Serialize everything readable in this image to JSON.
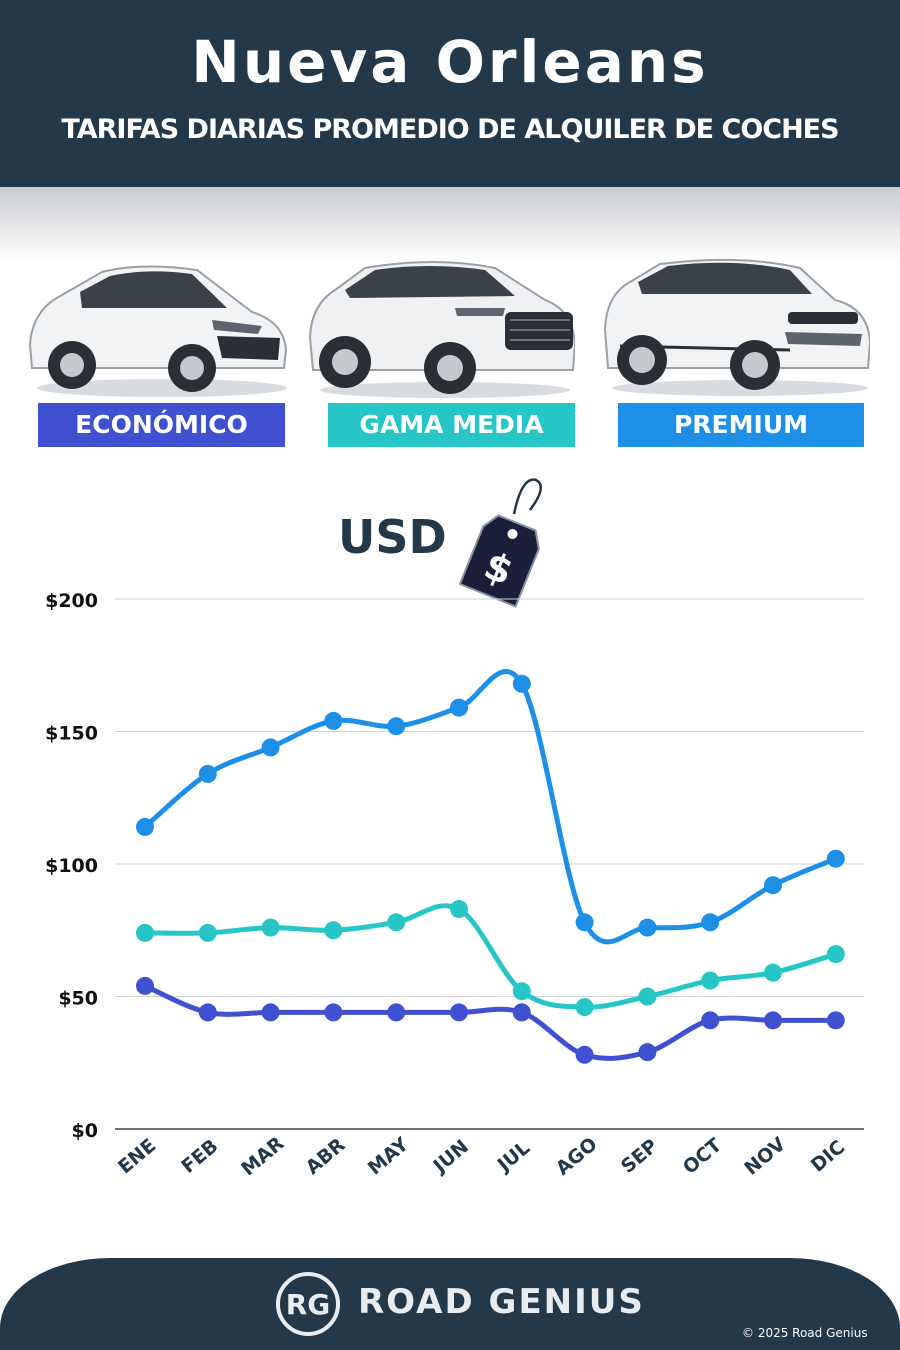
{
  "header": {
    "title": "Nueva Orleans",
    "subtitle": "TARIFAS DIARIAS PROMEDIO DE ALQUILER DE COCHES"
  },
  "categories": [
    {
      "label": "ECONÓMICO",
      "color": "#3f51d1",
      "icon": "hatchback-car-icon"
    },
    {
      "label": "GAMA MEDIA",
      "color": "#26c6c6",
      "icon": "suv-car-icon"
    },
    {
      "label": "PREMIUM",
      "color": "#1e8fe6",
      "icon": "luxury-suv-car-icon"
    }
  ],
  "currency": {
    "label": "USD",
    "icon": "price-tag-icon",
    "symbol": "$"
  },
  "chart_data": {
    "type": "line",
    "categories": [
      "ENE",
      "FEB",
      "MAR",
      "ABR",
      "MAY",
      "JUN",
      "JUL",
      "AGO",
      "SEP",
      "OCT",
      "NOV",
      "DIC"
    ],
    "series": [
      {
        "name": "ECONÓMICO",
        "color": "#3f51d1",
        "values": [
          54,
          44,
          44,
          44,
          44,
          44,
          44,
          28,
          29,
          41,
          41,
          41
        ]
      },
      {
        "name": "GAMA MEDIA",
        "color": "#26c6c6",
        "values": [
          74,
          74,
          76,
          75,
          78,
          83,
          52,
          46,
          50,
          56,
          59,
          66
        ]
      },
      {
        "name": "PREMIUM",
        "color": "#1e8fe6",
        "values": [
          114,
          134,
          144,
          154,
          152,
          159,
          168,
          78,
          76,
          78,
          92,
          102
        ]
      }
    ],
    "ylim": [
      0,
      200
    ],
    "yticks": [
      0,
      50,
      100,
      150,
      200
    ],
    "ytick_labels": [
      "$0",
      "$50",
      "$100",
      "$150",
      "$200"
    ],
    "grid": true
  },
  "footer": {
    "logo_text": "RG",
    "brand": "ROAD GENIUS",
    "copyright": "© 2025 Road Genius"
  }
}
